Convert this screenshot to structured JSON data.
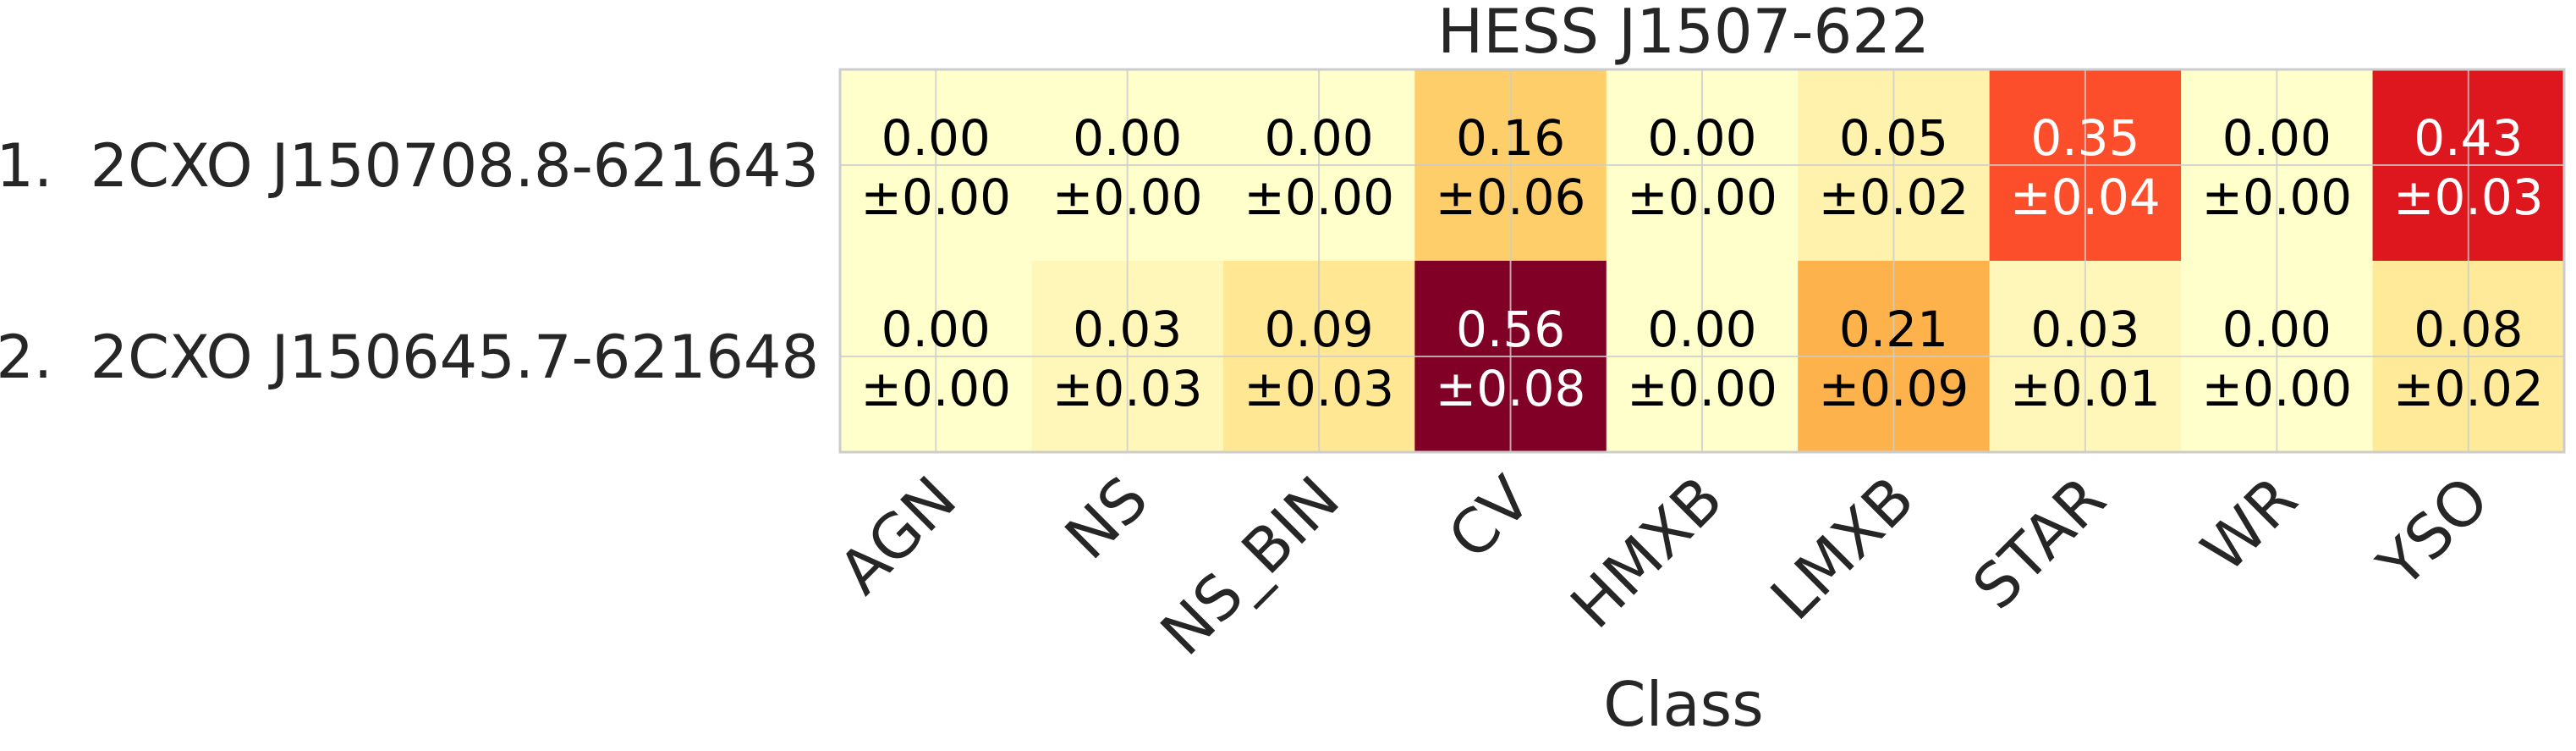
{
  "chart_data": {
    "type": "heatmap",
    "title": "HESS J1507-622",
    "xlabel": "Class",
    "ylabel": "",
    "categories": [
      "AGN",
      "NS",
      "NS_BIN",
      "CV",
      "HMXB",
      "LMXB",
      "STAR",
      "WR",
      "YSO"
    ],
    "rows": [
      {
        "label": "1.  2CXO J150708.8-621643",
        "values": [
          0.0,
          0.0,
          0.0,
          0.16,
          0.0,
          0.05,
          0.35,
          0.0,
          0.43
        ],
        "value_labels": [
          "0.00",
          "0.00",
          "0.00",
          "0.16",
          "0.00",
          "0.05",
          "0.35",
          "0.00",
          "0.43"
        ],
        "errors": [
          "±0.00",
          "±0.00",
          "±0.00",
          "±0.06",
          "±0.00",
          "±0.02",
          "±0.04",
          "±0.00",
          "±0.03"
        ]
      },
      {
        "label": "2.  2CXO J150645.7-621648",
        "values": [
          0.0,
          0.03,
          0.09,
          0.56,
          0.0,
          0.21,
          0.03,
          0.0,
          0.08
        ],
        "value_labels": [
          "0.00",
          "0.03",
          "0.09",
          "0.56",
          "0.00",
          "0.21",
          "0.03",
          "0.00",
          "0.08"
        ],
        "errors": [
          "±0.00",
          "±0.03",
          "±0.03",
          "±0.08",
          "±0.00",
          "±0.09",
          "±0.01",
          "±0.00",
          "±0.02"
        ]
      }
    ],
    "colormap": "YlOrRd",
    "color_range": [
      0,
      0.56
    ],
    "grid": true
  }
}
